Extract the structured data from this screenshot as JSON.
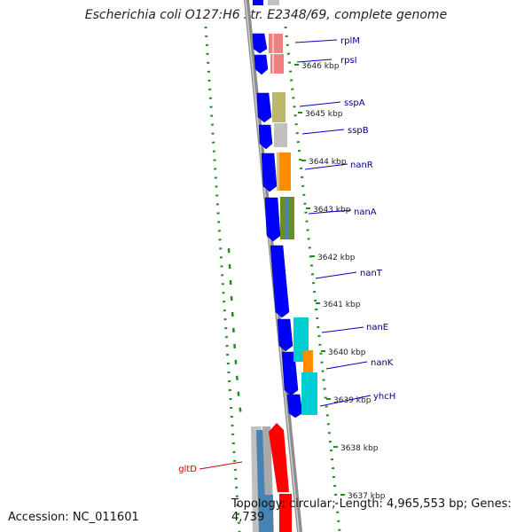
{
  "title": "Escherichia coli O127:H6 str. E2348/69, complete genome",
  "footer": {
    "accession": "Accession: NC_011601",
    "topology": "Topology: circular; Length: 4,965,553 bp; Genes: 4,739"
  },
  "colors": {
    "backbone": "#808080",
    "cds_strand": "#0000ff",
    "gene_label": "#00008b",
    "highlight_label": "#cc0000",
    "highlight_gene": "#ff0000",
    "gc_dots": "#228b22"
  },
  "ticks": [
    {
      "label": "3646 kbp"
    },
    {
      "label": "3645 kbp"
    },
    {
      "label": "3644 kbp"
    },
    {
      "label": "3643 kbp"
    },
    {
      "label": "3642 kbp"
    },
    {
      "label": "3641 kbp"
    },
    {
      "label": "3640 kbp"
    },
    {
      "label": "3639 kbp"
    },
    {
      "label": "3638 kbp"
    },
    {
      "label": "3637 kbp"
    }
  ],
  "genes": [
    {
      "label": "rplM",
      "color": "#f08080"
    },
    {
      "label": "rpsI",
      "color": "#f08080"
    },
    {
      "label": "sspA",
      "color": "#bdb76b"
    },
    {
      "label": "sspB",
      "color": "#c0c0c0"
    },
    {
      "label": "nanR",
      "color": "#ff8c00"
    },
    {
      "label": "nanA",
      "color": "#6b8e23"
    },
    {
      "label": "nanT",
      "color": "#0000ff"
    },
    {
      "label": "nanE",
      "color": "#00ced1"
    },
    {
      "label": "nanK",
      "color": "#ff8c00"
    },
    {
      "label": "yhcH",
      "color": "#00ced1"
    },
    {
      "label": "gltD",
      "color": "#ff0000"
    }
  ]
}
